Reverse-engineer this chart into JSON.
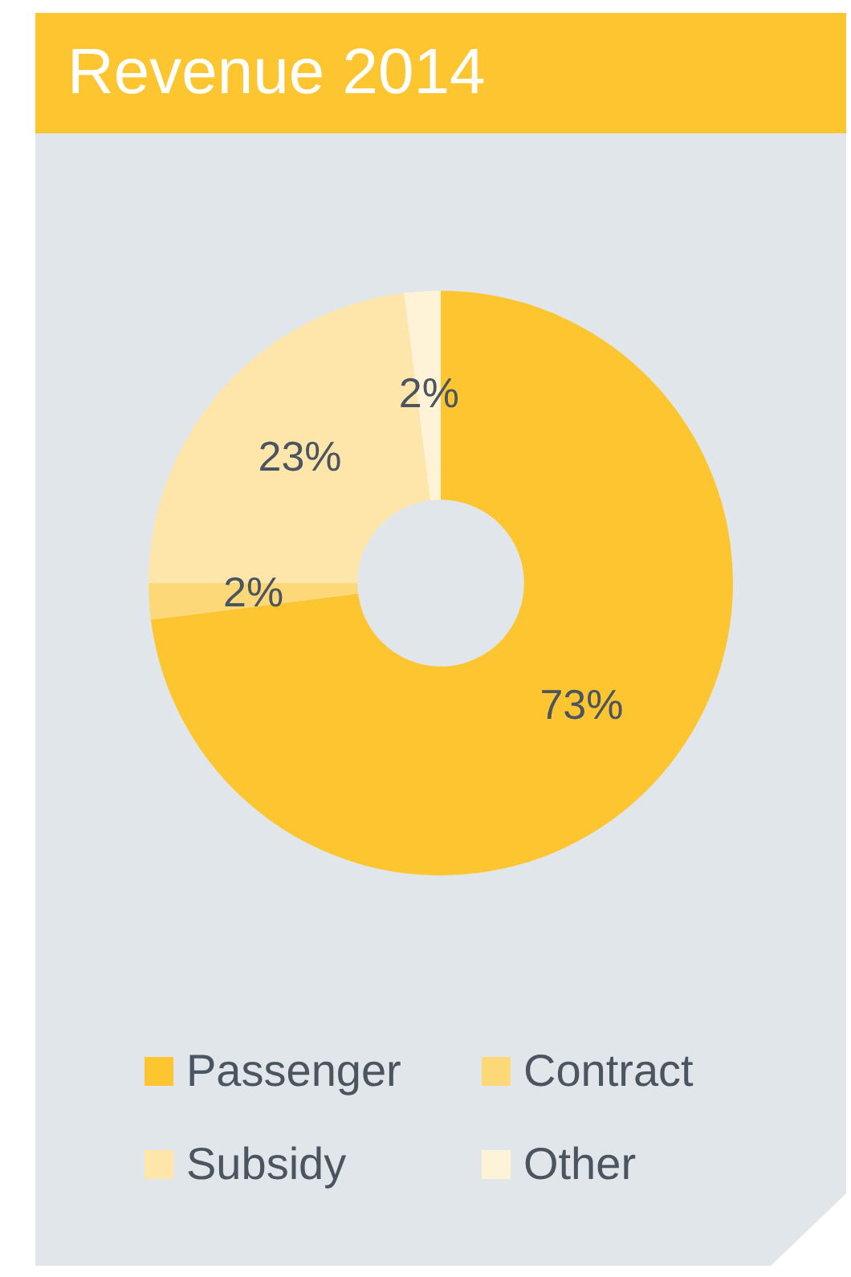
{
  "chart_data": {
    "type": "donut",
    "title": "Revenue 2014",
    "categories": [
      "Passenger",
      "Contract",
      "Subsidy",
      "Other"
    ],
    "values": [
      73,
      2,
      23,
      2
    ],
    "value_labels": [
      "73%",
      "2%",
      "23%",
      "2%"
    ],
    "colors": [
      "#fdc630",
      "#fdd878",
      "#fee6ab",
      "#fef3d6"
    ],
    "legend": "bottom"
  }
}
